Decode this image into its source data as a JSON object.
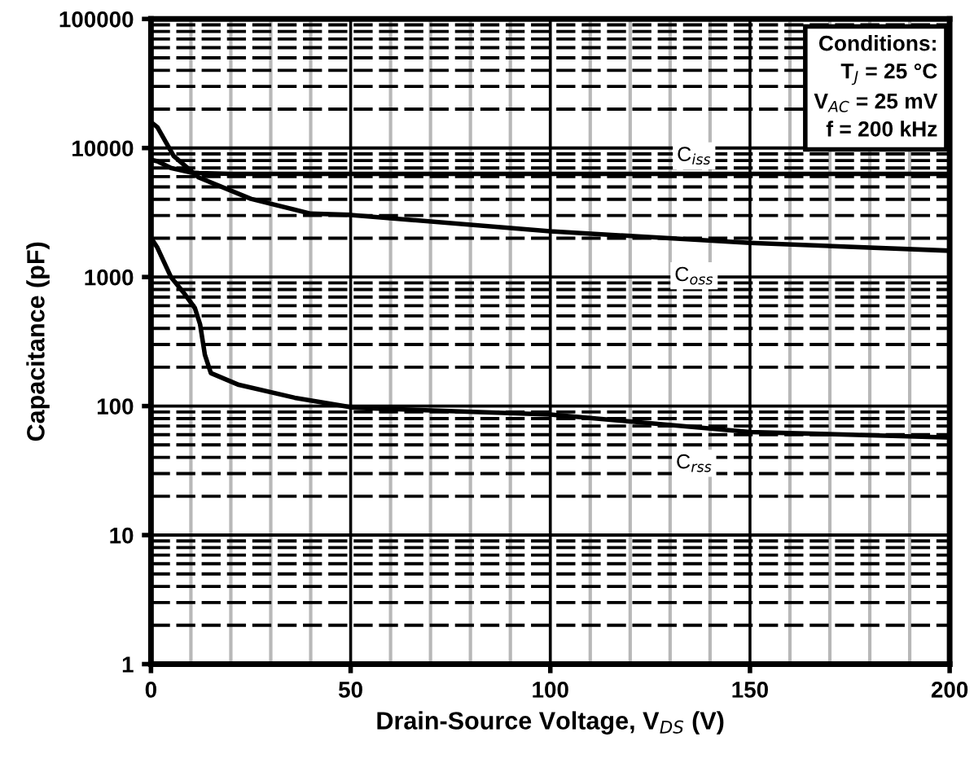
{
  "chart_data": {
    "type": "line",
    "xlabel": "Drain-Source Voltage, V$_{DS}$ (V)",
    "ylabel": "Capacitance (pF)",
    "series": [
      {
        "name": "C$_{iss}$",
        "color": "#000000",
        "x": [
          0,
          1.6,
          5,
          10,
          12,
          20,
          50,
          100,
          150,
          200
        ],
        "values": [
          8100,
          7900,
          7000,
          6450,
          6400,
          6300,
          6300,
          6300,
          6300,
          6300
        ]
      },
      {
        "name": "C$_{oss}$",
        "color": "#000000",
        "x": [
          0,
          1.6,
          5.7,
          12,
          25,
          40,
          50,
          100,
          150,
          200
        ],
        "values": [
          15900,
          14500,
          8650,
          5900,
          4040,
          3100,
          3030,
          2260,
          1840,
          1600
        ]
      },
      {
        "name": "C$_{rss}$",
        "color": "#000000",
        "x": [
          0,
          1.6,
          5,
          8,
          11,
          12.3,
          13.5,
          15,
          22,
          36,
          51,
          100,
          150,
          200
        ],
        "values": [
          2010,
          1690,
          1000,
          770,
          575,
          430,
          250,
          180,
          146,
          116,
          97,
          86,
          63,
          57
        ]
      }
    ],
    "xlim": [
      0,
      200
    ],
    "xticks": [
      0,
      50,
      100,
      150,
      200
    ],
    "ylim": [
      1,
      100000
    ],
    "yticks": [
      1,
      10,
      100,
      1000,
      10000,
      100000
    ],
    "log": "y",
    "grid": true,
    "line_style": "solid",
    "marker": "none",
    "annotations": [
      "Conditions:\nT$_{J}$ = 25 °C\nV$_{AC}$ = 25 mV\nf = 200 kHz"
    ]
  }
}
